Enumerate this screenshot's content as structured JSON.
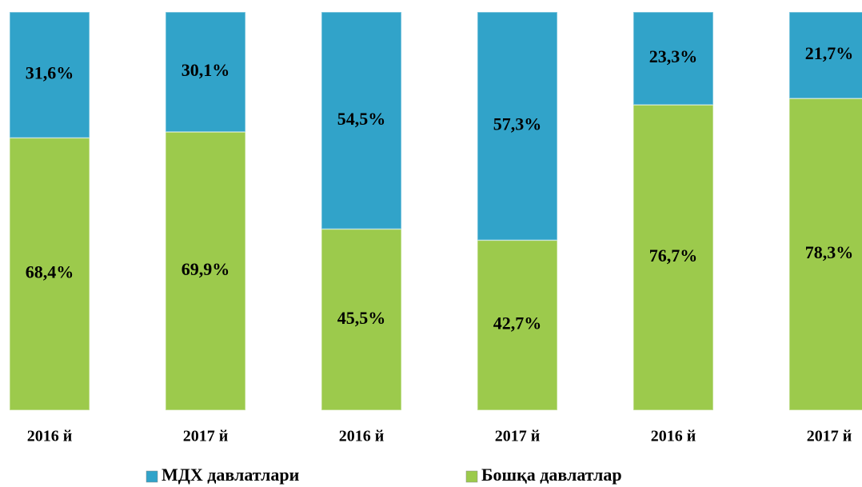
{
  "chart_data": {
    "type": "stacked-bar",
    "categories": [
      "2016 й",
      "2017 й",
      "2016 й",
      "2017 й",
      "2016 й",
      "2017 й"
    ],
    "series": [
      {
        "name": "Бошқа давлатлар",
        "color": "#9cca4c",
        "values": [
          68.4,
          69.9,
          45.5,
          42.7,
          76.7,
          78.3
        ],
        "value_labels": [
          "68,4%",
          "69,9%",
          "45,5%",
          "42,7%",
          "76,7%",
          "78,3%"
        ]
      },
      {
        "name": "МДХ давлатлари",
        "color": "#31a3c9",
        "values": [
          31.6,
          30.1,
          54.5,
          57.3,
          23.3,
          21.7
        ],
        "value_labels": [
          "31,6%",
          "30,1%",
          "54,5%",
          "57,3%",
          "23,3%",
          "21,7%"
        ]
      }
    ],
    "legend": "bottom"
  }
}
